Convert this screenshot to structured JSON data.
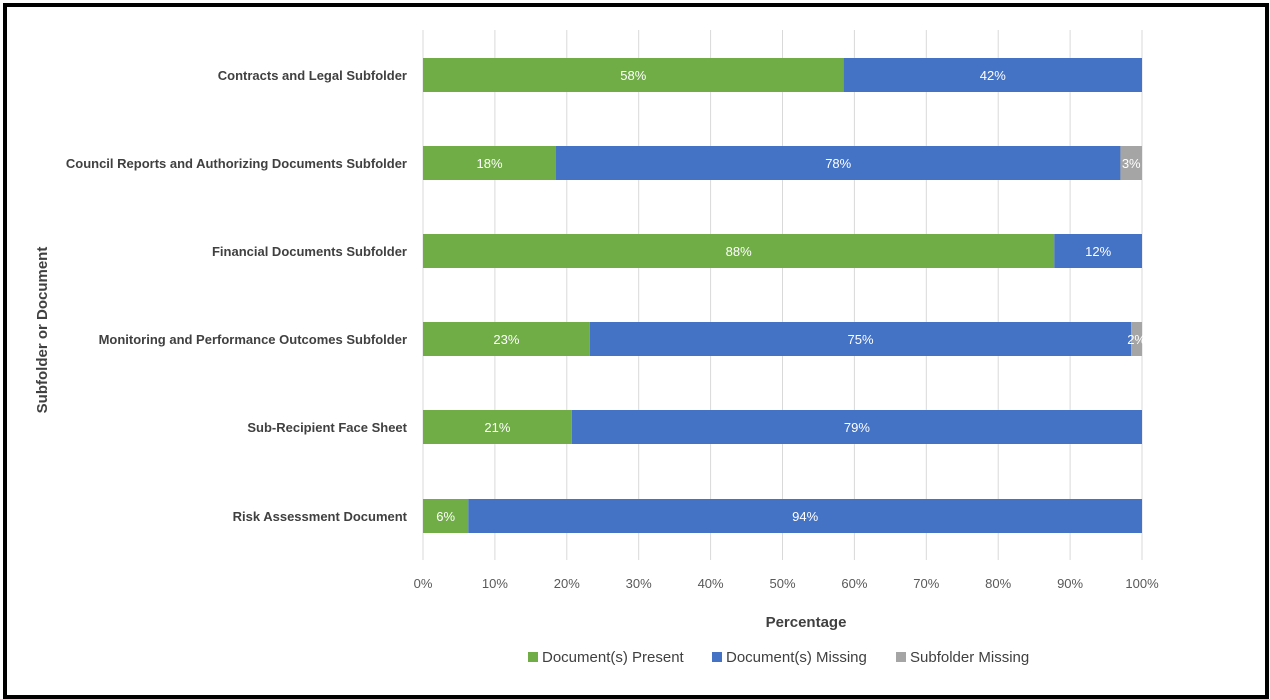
{
  "chart_data": {
    "type": "bar",
    "orientation": "horizontal",
    "stacked": "100%",
    "categories": [
      "Contracts and Legal Subfolder",
      "Council Reports and Authorizing Documents Subfolder",
      "Financial Documents Subfolder",
      "Monitoring and Performance Outcomes Subfolder",
      "Sub-Recipient Face Sheet",
      "Risk Assessment Document"
    ],
    "series": [
      {
        "name": "Document(s) Present",
        "color": "#70ad47",
        "values": [
          58.5,
          18.5,
          87.8,
          23.2,
          20.7,
          6.3
        ],
        "labels": [
          "58%",
          "18%",
          "88%",
          "23%",
          "21%",
          "6%"
        ]
      },
      {
        "name": "Document(s) Missing",
        "color": "#4472c4",
        "values": [
          41.5,
          78.5,
          12.2,
          75.3,
          79.3,
          93.7
        ],
        "labels": [
          "42%",
          "78%",
          "12%",
          "75%",
          "79%",
          "94%"
        ]
      },
      {
        "name": "Subfolder Missing",
        "color": "#a5a5a5",
        "values": [
          0,
          3.0,
          0,
          1.5,
          0,
          0
        ],
        "labels": [
          "",
          "3%",
          "",
          "2%",
          "",
          ""
        ]
      }
    ],
    "xlabel": "Percentage",
    "ylabel": "Subfolder or Document",
    "xlim": [
      0,
      100
    ],
    "xticks": [
      "0%",
      "10%",
      "20%",
      "30%",
      "40%",
      "50%",
      "60%",
      "70%",
      "80%",
      "90%",
      "100%"
    ],
    "grid": "vertical",
    "legend": "bottom"
  }
}
